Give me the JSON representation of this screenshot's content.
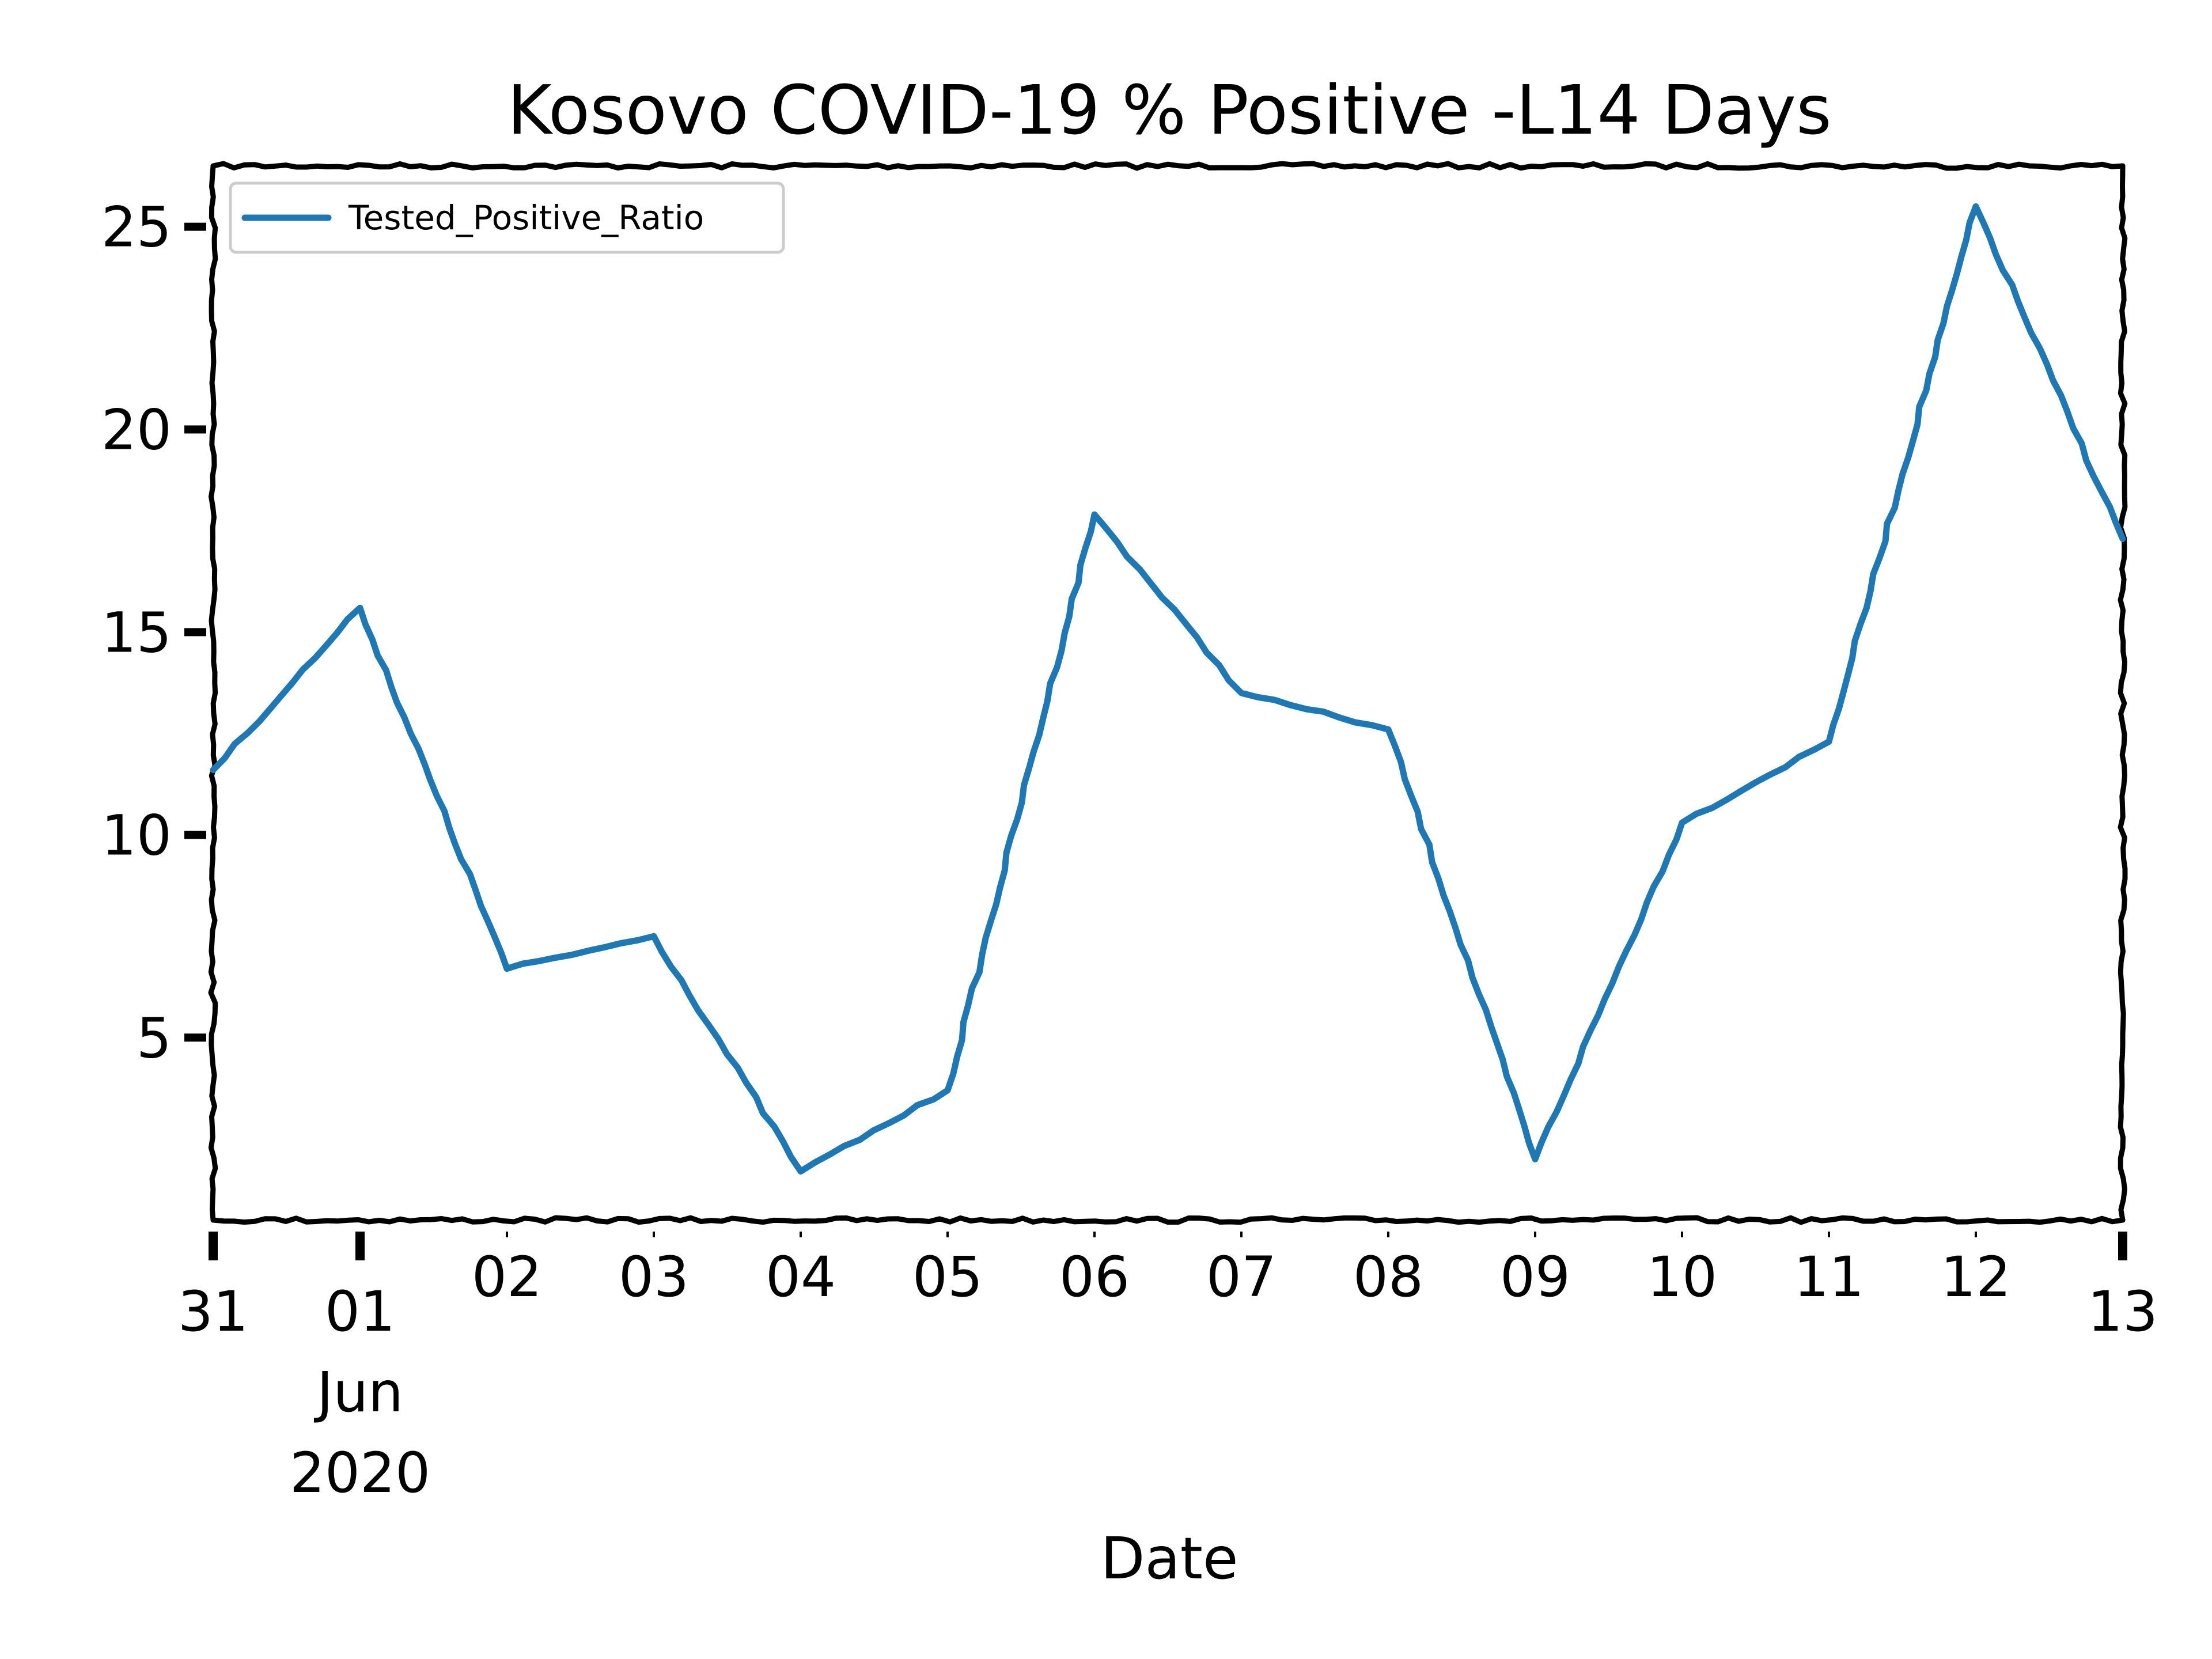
{
  "chart_data": {
    "type": "line",
    "title": "Kosovo COVID-19 % Positive -L14 Days",
    "xlabel": "Date",
    "ylabel": "",
    "x_date_range": [
      "2020-05-31",
      "2020-06-13"
    ],
    "x_ticks": [
      {
        "x": "2020-05-31",
        "label": "31"
      },
      {
        "x": "2020-06-01",
        "label": "01",
        "label2": "Jun",
        "label3": "2020"
      },
      {
        "x": "2020-06-02",
        "label": "02"
      },
      {
        "x": "2020-06-03",
        "label": "03"
      },
      {
        "x": "2020-06-04",
        "label": "04"
      },
      {
        "x": "2020-06-05",
        "label": "05"
      },
      {
        "x": "2020-06-06",
        "label": "06"
      },
      {
        "x": "2020-06-07",
        "label": "07"
      },
      {
        "x": "2020-06-08",
        "label": "08"
      },
      {
        "x": "2020-06-09",
        "label": "09"
      },
      {
        "x": "2020-06-10",
        "label": "10"
      },
      {
        "x": "2020-06-11",
        "label": "11"
      },
      {
        "x": "2020-06-12",
        "label": "12"
      },
      {
        "x": "2020-06-13",
        "label": "13"
      }
    ],
    "ylim": [
      0.5,
      26.5
    ],
    "y_ticks": [
      5,
      10,
      15,
      20,
      25
    ],
    "legend": {
      "position": "top-left"
    },
    "grid": false,
    "series": [
      {
        "name": "Tested_Positive_Ratio",
        "color": "#1f77b4",
        "x": [
          "2020-05-31",
          "2020-06-01",
          "2020-06-02",
          "2020-06-03",
          "2020-06-04",
          "2020-06-05",
          "2020-06-06",
          "2020-06-07",
          "2020-06-08",
          "2020-06-09",
          "2020-06-10",
          "2020-06-11",
          "2020-06-12",
          "2020-06-13"
        ],
        "y": [
          11.6,
          15.6,
          6.7,
          7.5,
          1.7,
          3.7,
          17.9,
          13.5,
          12.6,
          2.0,
          10.3,
          12.3,
          25.5,
          17.3
        ]
      }
    ]
  }
}
